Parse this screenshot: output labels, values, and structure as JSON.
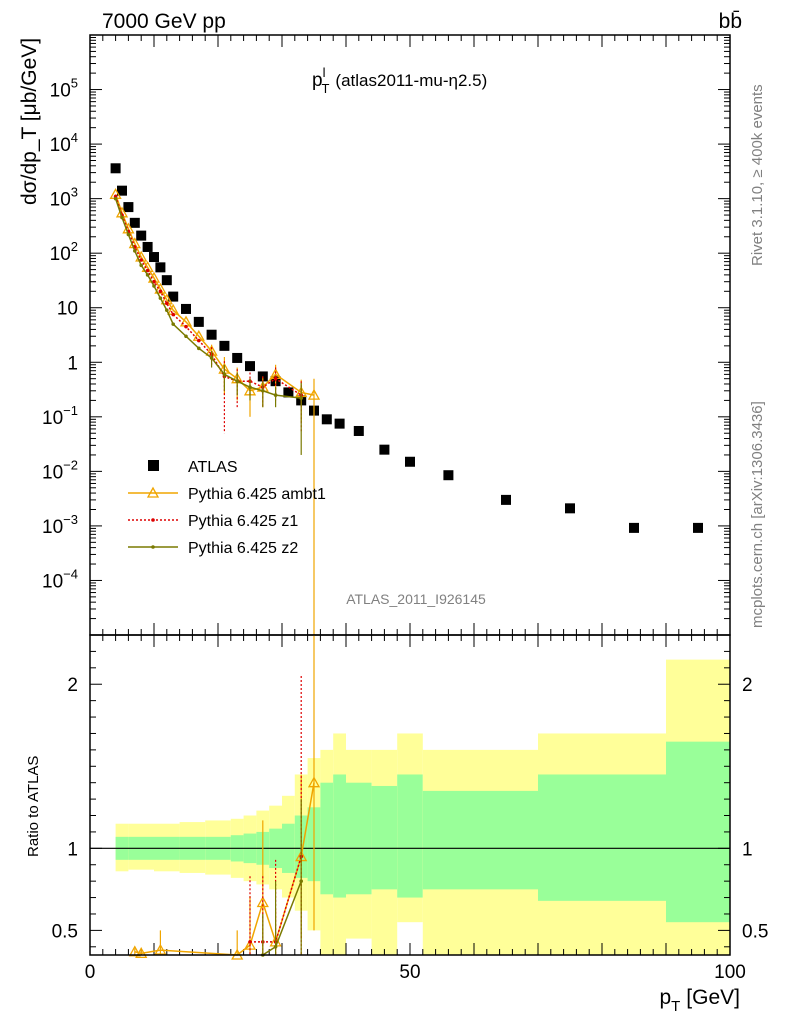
{
  "header": {
    "energy_label": "7000 GeV pp",
    "process_label": "bb̄"
  },
  "side_text": {
    "rivet": "Rivet 3.1.10, ≥ 400k events",
    "mcplots": "mcplots.cern.ch [arXiv:1306.3436]"
  },
  "chart_data": [
    {
      "type": "scatter",
      "panel": "main",
      "title_main": "p",
      "title_sup": "l",
      "title_sub": "T",
      "title_rest": "(atlas2011-mu-η2.5)",
      "ylabel": "dσ/dp_T [μb/GeV]",
      "ylog": true,
      "ylim": [
        1e-05,
        1000000
      ],
      "xlim": [
        0,
        100
      ],
      "yticks": [
        {
          "v": 100000,
          "label": "10",
          "exp": "5"
        },
        {
          "v": 10000,
          "label": "10",
          "exp": "4"
        },
        {
          "v": 1000,
          "label": "10",
          "exp": "3"
        },
        {
          "v": 100,
          "label": "10",
          "exp": "2"
        },
        {
          "v": 10,
          "label": "10",
          "exp": ""
        },
        {
          "v": 1,
          "label": "1",
          "exp": ""
        },
        {
          "v": 0.1,
          "label": "10",
          "exp": "−1"
        },
        {
          "v": 0.01,
          "label": "10",
          "exp": "−2"
        },
        {
          "v": 0.001,
          "label": "10",
          "exp": "−3"
        },
        {
          "v": 0.0001,
          "label": "10",
          "exp": "−4"
        }
      ],
      "watermark": "ATLAS_2011_I926145",
      "legend_position": "bottom-left",
      "series": [
        {
          "name": "ATLAS",
          "style": "data",
          "color": "#000000",
          "x": [
            4,
            5,
            6,
            7,
            8,
            9,
            10,
            11,
            12,
            13,
            15,
            17,
            19,
            21,
            23,
            25,
            27,
            29,
            31,
            33,
            35,
            37,
            39,
            42,
            46,
            50,
            56,
            65,
            75,
            85,
            95
          ],
          "y": [
            3600,
            1400,
            700,
            360,
            210,
            130,
            85,
            55,
            32,
            16,
            9.5,
            5.5,
            3.2,
            2.0,
            1.2,
            0.85,
            0.55,
            0.45,
            0.28,
            0.2,
            0.13,
            0.09,
            0.075,
            0.055,
            0.025,
            0.015,
            0.0085,
            0.003,
            0.0021,
            0.00092,
            0.00092
          ]
        },
        {
          "name": "Pythia 6.425 ambt1",
          "style": "triangle",
          "color": "#f0a500",
          "x": [
            4,
            5,
            6,
            7,
            8,
            9,
            10,
            11,
            12,
            13,
            15,
            17,
            19,
            21,
            23,
            25,
            27,
            29,
            33,
            35
          ],
          "y": [
            1200,
            550,
            280,
            150,
            85,
            55,
            35,
            22,
            14,
            9.0,
            5.5,
            3.0,
            1.6,
            0.75,
            0.5,
            0.3,
            0.35,
            0.6,
            0.28,
            0.25
          ],
          "yerr": [
            0,
            0,
            0,
            0,
            0,
            0,
            0,
            0,
            0,
            0,
            0,
            0,
            0.5,
            0.5,
            0.3,
            0.2,
            0.2,
            0.3,
            0.2,
            0.25
          ]
        },
        {
          "name": "Pythia 6.425 z1",
          "style": "dotted",
          "color": "#dd0000",
          "x": [
            4,
            5,
            6,
            7,
            8,
            9,
            10,
            11,
            12,
            13,
            15,
            17,
            19,
            21,
            23,
            25,
            27,
            29,
            33
          ],
          "y": [
            1100,
            500,
            250,
            130,
            75,
            48,
            30,
            20,
            12,
            7.5,
            4.5,
            2.5,
            1.4,
            0.55,
            0.45,
            0.45,
            0.35,
            0.5,
            0.25
          ],
          "yerr": [
            0,
            0,
            0,
            0,
            0,
            0,
            0,
            0,
            0,
            0,
            0,
            0,
            0.5,
            0.5,
            0.3,
            0.2,
            0.2,
            0.3,
            0.2
          ]
        },
        {
          "name": "Pythia 6.425 z2",
          "style": "line",
          "color": "#7a7a00",
          "x": [
            4,
            5,
            6,
            7,
            8,
            9,
            10,
            11,
            12,
            13,
            15,
            17,
            19,
            21,
            23,
            25,
            27,
            29,
            33
          ],
          "y": [
            1000,
            450,
            220,
            110,
            60,
            40,
            25,
            15,
            9.0,
            5.0,
            3.0,
            1.8,
            1.2,
            0.6,
            0.45,
            0.35,
            0.3,
            0.25,
            0.22
          ],
          "yerr": [
            0,
            0,
            0,
            0,
            0,
            0,
            0,
            0,
            0,
            0,
            0,
            0,
            0.4,
            0.3,
            0.2,
            0.15,
            0.15,
            0.1,
            0.2
          ]
        }
      ]
    },
    {
      "type": "scatter",
      "panel": "ratio",
      "ylabel": "Ratio to ATLAS",
      "xlabel_main": "p",
      "xlabel_sub": "T",
      "xlabel_unit": "[GeV]",
      "ylim": [
        0.35,
        2.3
      ],
      "xlim": [
        0,
        100
      ],
      "xticks": [
        0,
        50,
        100
      ],
      "yticks": [
        0.5,
        1,
        2
      ],
      "bands": [
        {
          "x0": 4.0,
          "x1": 6.0,
          "inner": [
            0.93,
            1.07
          ],
          "outer": [
            0.86,
            1.15
          ]
        },
        {
          "x0": 6.0,
          "x1": 10.0,
          "inner": [
            0.93,
            1.07
          ],
          "outer": [
            0.87,
            1.15
          ]
        },
        {
          "x0": 10.0,
          "x1": 14.0,
          "inner": [
            0.93,
            1.07
          ],
          "outer": [
            0.86,
            1.15
          ]
        },
        {
          "x0": 14.0,
          "x1": 18.0,
          "inner": [
            0.93,
            1.07
          ],
          "outer": [
            0.85,
            1.16
          ]
        },
        {
          "x0": 18.0,
          "x1": 22.0,
          "inner": [
            0.93,
            1.07
          ],
          "outer": [
            0.84,
            1.17
          ]
        },
        {
          "x0": 22.0,
          "x1": 24.0,
          "inner": [
            0.92,
            1.08
          ],
          "outer": [
            0.82,
            1.18
          ]
        },
        {
          "x0": 24.0,
          "x1": 26.0,
          "inner": [
            0.91,
            1.09
          ],
          "outer": [
            0.8,
            1.2
          ]
        },
        {
          "x0": 26.0,
          "x1": 28.0,
          "inner": [
            0.9,
            1.1
          ],
          "outer": [
            0.78,
            1.23
          ]
        },
        {
          "x0": 28.0,
          "x1": 30.0,
          "inner": [
            0.88,
            1.12
          ],
          "outer": [
            0.75,
            1.26
          ]
        },
        {
          "x0": 30.0,
          "x1": 32.0,
          "inner": [
            0.85,
            1.15
          ],
          "outer": [
            0.7,
            1.32
          ]
        },
        {
          "x0": 32.0,
          "x1": 34.0,
          "inner": [
            0.82,
            1.2
          ],
          "outer": [
            0.62,
            1.45
          ]
        },
        {
          "x0": 34.0,
          "x1": 36.0,
          "inner": [
            0.8,
            1.25
          ],
          "outer": [
            0.5,
            1.55
          ]
        },
        {
          "x0": 36.0,
          "x1": 38.0,
          "inner": [
            0.72,
            1.4
          ],
          "outer": [
            0.35,
            1.6
          ]
        },
        {
          "x0": 38.0,
          "x1": 40.0,
          "inner": [
            0.7,
            1.45
          ],
          "outer": [
            0.35,
            1.7
          ]
        },
        {
          "x0": 40.0,
          "x1": 44.0,
          "inner": [
            0.72,
            1.4
          ],
          "outer": [
            0.45,
            1.6
          ]
        },
        {
          "x0": 44.0,
          "x1": 48.0,
          "inner": [
            0.75,
            1.38
          ],
          "outer": [
            0.35,
            1.6
          ]
        },
        {
          "x0": 48.0,
          "x1": 52.0,
          "inner": [
            0.7,
            1.45
          ],
          "outer": [
            0.55,
            1.7
          ]
        },
        {
          "x0": 52.0,
          "x1": 60.0,
          "inner": [
            0.75,
            1.35
          ],
          "outer": [
            0.35,
            1.6
          ]
        },
        {
          "x0": 60.0,
          "x1": 70.0,
          "inner": [
            0.75,
            1.35
          ],
          "outer": [
            0.35,
            1.6
          ]
        },
        {
          "x0": 70.0,
          "x1": 90.0,
          "inner": [
            0.68,
            1.45
          ],
          "outer": [
            0.35,
            1.7
          ]
        },
        {
          "x0": 90.0,
          "x1": 100.0,
          "inner": [
            0.55,
            1.65
          ],
          "outer": [
            0.35,
            2.15
          ]
        }
      ],
      "series": [
        {
          "name": "Pythia 6.425 ambt1",
          "style": "triangle",
          "color": "#f0a500",
          "x": [
            7,
            8,
            11,
            23,
            25,
            27,
            29,
            33,
            35
          ],
          "y": [
            0.37,
            0.36,
            0.38,
            0.3,
            0.41,
            0.67,
            0.43,
            0.95,
            1.4
          ],
          "yerr": [
            0.02,
            0.02,
            0.12,
            0.2,
            0.3,
            0.5,
            0.2,
            0.5,
            0.9
          ]
        },
        {
          "name": "Pythia 6.425 z1",
          "style": "dotted",
          "color": "#dd0000",
          "x": [
            25,
            27,
            29,
            33
          ],
          "y": [
            0.43,
            0.43,
            0.43,
            0.95
          ],
          "yerr": [
            0.4,
            0.4,
            0.5,
            1.1
          ]
        },
        {
          "name": "Pythia 6.425 z2",
          "style": "line",
          "color": "#7a7a00",
          "x": [
            27,
            29,
            33
          ],
          "y": [
            0.3,
            0.4,
            0.8
          ],
          "yerr": [
            0.3,
            0.4,
            0.5
          ]
        }
      ]
    }
  ]
}
